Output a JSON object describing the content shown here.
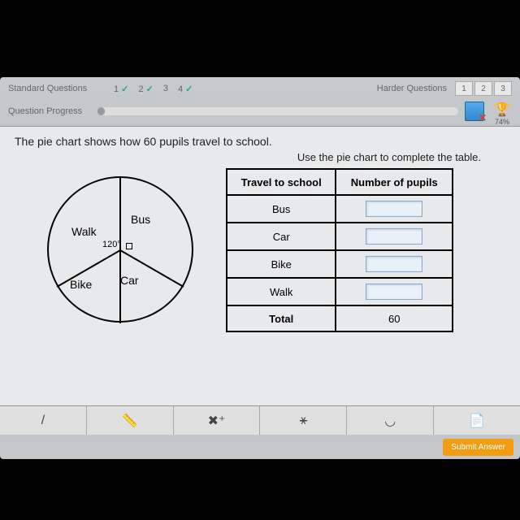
{
  "header": {
    "standard_label": "Standard Questions",
    "q_numbers": [
      "1",
      "2",
      "3",
      "4"
    ],
    "q_checks": [
      true,
      true,
      false,
      true
    ],
    "harder_label": "Harder Questions",
    "harder_numbers": [
      "1",
      "2",
      "3"
    ]
  },
  "progress": {
    "label": "Question Progress",
    "trophy_pct": "74%"
  },
  "question": {
    "text": "The pie chart shows how 60 pupils travel to school.",
    "subtext": "Use the pie chart to complete the table."
  },
  "pie": {
    "type": "pie",
    "labels": {
      "bus": "Bus",
      "walk": "Walk",
      "car": "Car",
      "bike": "Bike"
    },
    "angle_label": "120°",
    "radius": 90,
    "stroke_color": "#000000",
    "divider_angles_deg": [
      -90,
      30,
      90,
      150
    ]
  },
  "table": {
    "headers": [
      "Travel to school",
      "Number of pupils"
    ],
    "rows": [
      "Bus",
      "Car",
      "Bike",
      "Walk"
    ],
    "total_label": "Total",
    "total_value": "60"
  },
  "toolbar": {
    "tools": [
      "/",
      "📏",
      "✖⁺",
      "⚹",
      "◡",
      "📄"
    ]
  },
  "submit": {
    "label": "Submit Answer"
  },
  "colors": {
    "bg": "#e8e9eb",
    "border": "#000000",
    "input_bg": "#e8f0f8",
    "input_border": "#88aacc",
    "submit_bg": "#f39c12"
  }
}
